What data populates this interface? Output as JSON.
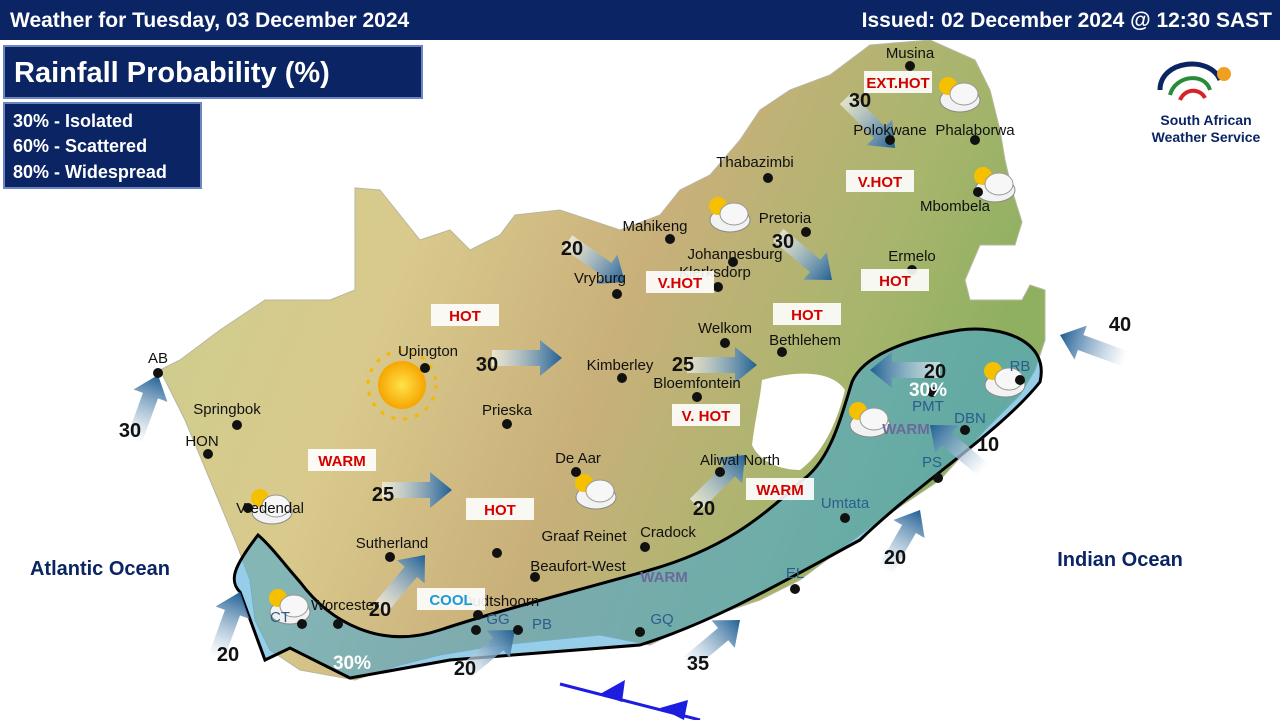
{
  "header": {
    "left": "Weather for Tuesday, 03 December 2024",
    "right": "Issued: 02 December 2024  @ 12:30 SAST"
  },
  "panel": {
    "title": "Rainfall Probability (%)",
    "legend": [
      "30% - Isolated",
      "60% - Scattered",
      "80% - Widespread"
    ]
  },
  "logo": {
    "lines": [
      "South African",
      "Weather Service"
    ]
  },
  "oceans": [
    "Atlantic Ocean",
    "Indian Ocean"
  ],
  "cities": [
    "Musina",
    "Polokwane",
    "Phalaborwa",
    "Thabazimbi",
    "Mbombela",
    "Pretoria",
    "Mahikeng",
    "Johannesburg",
    "Klerksdorp",
    "Ermelo",
    "Vryburg",
    "Welkom",
    "Bethlehem",
    "Kimberley",
    "Bloemfontein",
    "Upington",
    "Prieska",
    "Springbok",
    "HON",
    "AB",
    "Aliwal North",
    "De Aar",
    "Vredendal",
    "Sutherland",
    "Graaf Reinet",
    "Cradock",
    "Beaufort-West",
    "Umtata",
    "EL",
    "PS",
    "PMT",
    "DBN",
    "RB",
    "Worcester",
    "Oudtshoorn",
    "GG",
    "PB",
    "GQ",
    "CT"
  ],
  "temperatures": [
    "EXT.HOT",
    "V.HOT",
    "V.HOT",
    "HOT",
    "HOT",
    "HOT",
    "V. HOT",
    "WARM",
    "HOT",
    "WARM",
    "WARM",
    "COOL",
    "WARM"
  ],
  "winds": [
    "30",
    "20",
    "30",
    "30",
    "25",
    "25",
    "20",
    "20",
    "20",
    "20",
    "35",
    "20",
    "10",
    "40",
    "30",
    "20"
  ],
  "rainfall": [
    "30%",
    "30%"
  ]
}
